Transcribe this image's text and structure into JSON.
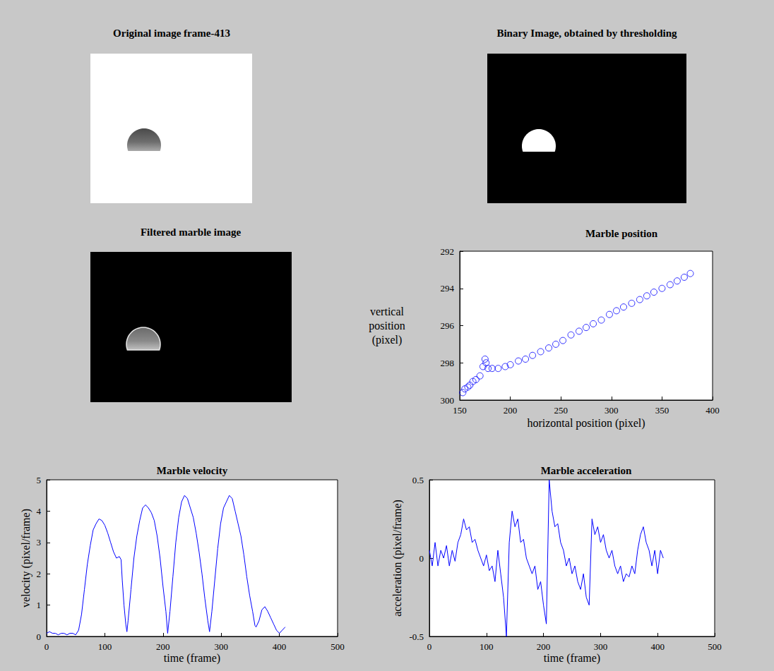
{
  "chart_data": [
    {
      "type": "image",
      "title": "Original image frame-413"
    },
    {
      "type": "image",
      "title": "Binary Image, obtained by thresholding"
    },
    {
      "type": "image",
      "title": "Filtered marble image"
    },
    {
      "type": "scatter",
      "title": "Marble position",
      "xlabel": "horizontal position (pixel)",
      "ylabel": "vertical position (pixel)",
      "x": [
        153,
        155,
        158,
        160,
        163,
        166,
        170,
        173,
        175,
        176,
        178,
        182,
        188,
        195,
        200,
        208,
        215,
        222,
        230,
        238,
        245,
        252,
        260,
        268,
        275,
        282,
        290,
        298,
        305,
        312,
        320,
        328,
        335,
        342,
        350,
        358,
        365,
        372,
        378
      ],
      "values": [
        299.6,
        299.4,
        299.3,
        299.2,
        299.0,
        298.9,
        298.7,
        298.2,
        297.8,
        298.0,
        298.3,
        298.3,
        298.3,
        298.2,
        298.1,
        297.9,
        297.8,
        297.6,
        297.4,
        297.2,
        297.0,
        296.8,
        296.5,
        296.3,
        296.1,
        295.9,
        295.7,
        295.4,
        295.2,
        295.0,
        294.8,
        294.6,
        294.4,
        294.2,
        294.0,
        293.8,
        293.6,
        293.4,
        293.2
      ],
      "xlim": [
        150,
        400
      ],
      "xticks": [
        150,
        200,
        250,
        300,
        350,
        400
      ],
      "ylim": [
        300,
        292
      ],
      "yticks": [
        292,
        294,
        296,
        298,
        300
      ],
      "color": "#0000ff",
      "marker": "circle",
      "grid": false
    },
    {
      "type": "line",
      "title": "Marble velocity",
      "xlabel": "time (frame)",
      "ylabel": "velocity (pixel/frame)",
      "x": [
        0,
        5,
        10,
        15,
        20,
        25,
        30,
        35,
        40,
        45,
        50,
        55,
        60,
        65,
        70,
        75,
        80,
        85,
        90,
        95,
        100,
        105,
        110,
        115,
        120,
        125,
        128,
        130,
        133,
        136,
        138,
        140,
        145,
        150,
        155,
        160,
        165,
        170,
        175,
        180,
        185,
        190,
        195,
        200,
        205,
        208,
        212,
        217,
        222,
        227,
        232,
        237,
        242,
        247,
        252,
        257,
        262,
        267,
        272,
        277,
        280,
        284,
        289,
        294,
        299,
        304,
        309,
        314,
        319,
        324,
        329,
        334,
        339,
        344,
        349,
        354,
        358,
        360,
        365,
        370,
        375,
        380,
        385,
        390,
        395,
        400,
        405,
        410
      ],
      "values": [
        0.1,
        0.15,
        0.1,
        0.1,
        0.05,
        0.1,
        0.1,
        0.05,
        0.1,
        0.1,
        0.05,
        0.2,
        0.7,
        1.5,
        2.3,
        2.9,
        3.4,
        3.6,
        3.75,
        3.7,
        3.55,
        3.3,
        3.0,
        2.7,
        2.5,
        2.55,
        2.45,
        1.8,
        1.0,
        0.4,
        0.15,
        0.5,
        1.5,
        2.5,
        3.2,
        3.7,
        4.1,
        4.2,
        4.1,
        3.95,
        3.7,
        3.2,
        2.5,
        1.6,
        0.8,
        0.1,
        0.8,
        1.9,
        3.0,
        3.8,
        4.3,
        4.5,
        4.4,
        4.1,
        3.8,
        3.3,
        2.7,
        2.0,
        1.2,
        0.5,
        0.15,
        0.8,
        1.8,
        2.8,
        3.6,
        4.1,
        4.3,
        4.5,
        4.4,
        4.0,
        3.6,
        3.2,
        2.6,
        1.9,
        1.3,
        0.8,
        0.35,
        0.3,
        0.5,
        0.85,
        0.95,
        0.8,
        0.6,
        0.4,
        0.2,
        0.1,
        0.2,
        0.3
      ],
      "xlim": [
        0,
        500
      ],
      "xticks": [
        0,
        100,
        200,
        300,
        400,
        500
      ],
      "ylim": [
        0,
        5
      ],
      "yticks": [
        0,
        1,
        2,
        3,
        4,
        5
      ],
      "color": "#0000ff",
      "line_style": "solid",
      "grid": false
    },
    {
      "type": "line",
      "title": "Marble acceleration",
      "xlabel": "time (frame)",
      "ylabel": "acceleration (pixel/frame)",
      "x": [
        0,
        5,
        10,
        15,
        20,
        25,
        30,
        35,
        40,
        45,
        50,
        55,
        60,
        65,
        70,
        75,
        80,
        85,
        90,
        95,
        100,
        105,
        110,
        115,
        120,
        125,
        130,
        135,
        140,
        145,
        150,
        155,
        160,
        165,
        170,
        175,
        180,
        185,
        190,
        195,
        200,
        205,
        210,
        215,
        220,
        225,
        230,
        235,
        240,
        245,
        250,
        255,
        260,
        265,
        270,
        275,
        280,
        285,
        290,
        295,
        300,
        305,
        310,
        315,
        320,
        325,
        330,
        335,
        340,
        345,
        350,
        355,
        360,
        365,
        370,
        375,
        380,
        385,
        390,
        395,
        400,
        405,
        410
      ],
      "values": [
        0.05,
        -0.05,
        0.1,
        -0.05,
        0.05,
        0.0,
        0.08,
        -0.05,
        0.05,
        -0.02,
        0.1,
        0.15,
        0.25,
        0.18,
        0.2,
        0.1,
        0.12,
        0.05,
        0.0,
        -0.05,
        0.02,
        -0.08,
        -0.05,
        -0.15,
        0.05,
        -0.1,
        -0.25,
        -0.5,
        0.1,
        0.3,
        0.2,
        0.25,
        0.1,
        0.12,
        0.0,
        -0.05,
        -0.1,
        -0.05,
        -0.2,
        -0.15,
        -0.3,
        -0.42,
        0.5,
        0.3,
        0.2,
        0.22,
        0.1,
        0.05,
        -0.05,
        0.0,
        -0.1,
        -0.05,
        -0.15,
        -0.2,
        -0.1,
        -0.25,
        -0.3,
        0.25,
        0.15,
        0.2,
        0.1,
        0.15,
        0.05,
        0.0,
        0.05,
        -0.05,
        -0.1,
        -0.05,
        -0.15,
        -0.1,
        -0.12,
        -0.05,
        -0.1,
        0.05,
        0.15,
        0.2,
        0.1,
        0.05,
        -0.05,
        0.05,
        -0.1,
        0.05,
        0.0
      ],
      "xlim": [
        0,
        500
      ],
      "xticks": [
        0,
        100,
        200,
        300,
        400,
        500
      ],
      "ylim": [
        -0.5,
        0.5
      ],
      "yticks": [
        -0.5,
        0,
        0.5
      ],
      "color": "#0000ff",
      "line_style": "solid",
      "grid": false
    }
  ]
}
